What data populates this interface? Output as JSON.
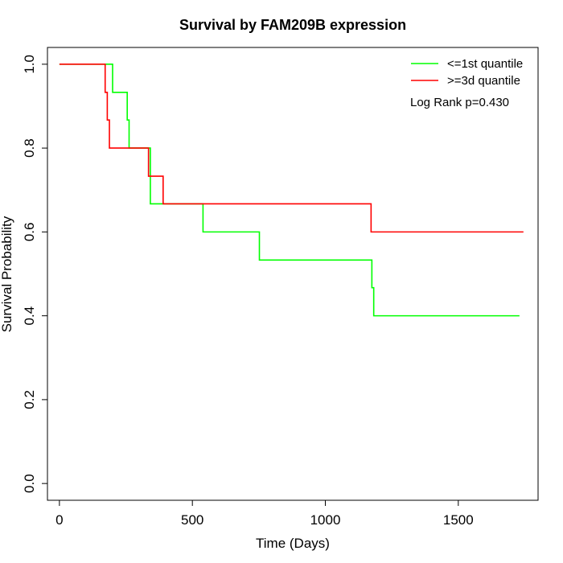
{
  "chart_data": {
    "type": "line",
    "title": "Survival by FAM209B expression",
    "xlabel": "Time (Days)",
    "ylabel": "Survival Probability",
    "xlim": [
      -45,
      1800
    ],
    "ylim": [
      -0.04,
      1.04
    ],
    "xticks": [
      0,
      500,
      1000,
      1500
    ],
    "yticks": [
      0.0,
      0.2,
      0.4,
      0.6,
      0.8,
      1.0
    ],
    "xtick_labels": [
      "0",
      "500",
      "1000",
      "1500"
    ],
    "ytick_labels": [
      "0.0",
      "0.2",
      "0.4",
      "0.6",
      "0.8",
      "1.0"
    ],
    "grid": false,
    "legend_position": "top-right",
    "annotation": "Log Rank p=0.430",
    "series": [
      {
        "name": "<=1st quantile",
        "color": "#00ff00",
        "step": true,
        "x": [
          0,
          200,
          255,
          262,
          342,
          540,
          752,
          1175,
          1182,
          1730
        ],
        "y": [
          1.0,
          0.933,
          0.867,
          0.8,
          0.667,
          0.6,
          0.533,
          0.467,
          0.4,
          0.4
        ]
      },
      {
        "name": ">=3d quantile",
        "color": "#ff0000",
        "step": true,
        "x": [
          0,
          172,
          180,
          188,
          335,
          390,
          1172,
          1745
        ],
        "y": [
          1.0,
          0.933,
          0.867,
          0.8,
          0.733,
          0.667,
          0.6,
          0.6
        ]
      }
    ]
  }
}
